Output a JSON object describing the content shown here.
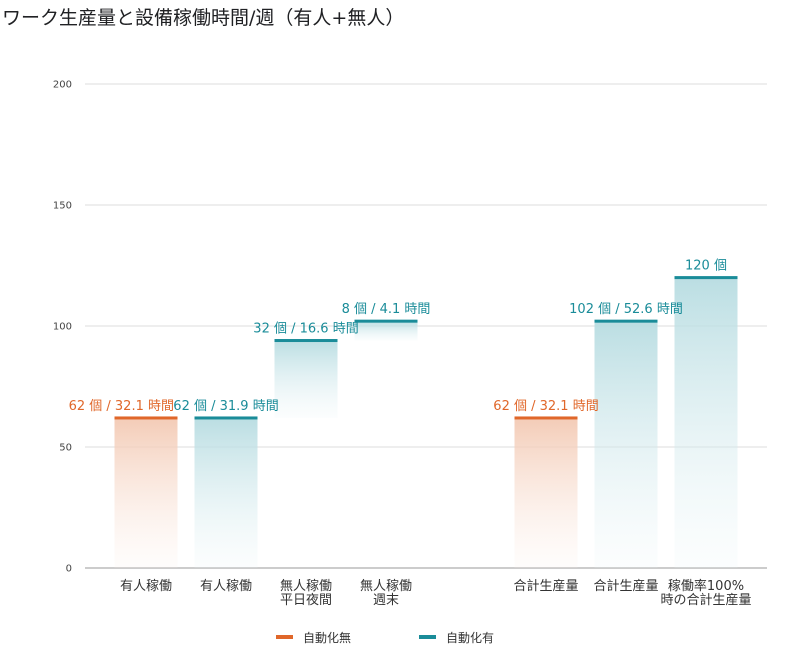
{
  "chart_data": {
    "type": "bar",
    "title": "ワーク生産量と設備稼働時間/週（有人+無人）",
    "xlabel": "",
    "ylabel": "",
    "ylim": [
      0,
      200
    ],
    "yticks": [
      "0",
      "50",
      "100",
      "150",
      "200"
    ],
    "grid": true,
    "legend_position": "bottom",
    "colors": {
      "自動化無": "#e0672a",
      "自動化有": "#1a8c99"
    },
    "legend": [
      {
        "name": "自動化無",
        "color": "#e0672a"
      },
      {
        "name": "自動化有",
        "color": "#1a8c99"
      }
    ],
    "bars": [
      {
        "category_lines": [
          "有人稼働"
        ],
        "series": "自動化無",
        "base": 0,
        "top": 62,
        "label": "62 個 / 32.1 時間"
      },
      {
        "category_lines": [
          "有人稼働"
        ],
        "series": "自動化有",
        "base": 0,
        "top": 62,
        "label": "62 個 / 31.9 時間"
      },
      {
        "category_lines": [
          "無人稼働",
          "平日夜間"
        ],
        "series": "自動化有",
        "base": 62,
        "top": 94,
        "label": "32 個 / 16.6 時間"
      },
      {
        "category_lines": [
          "無人稼働",
          "週末"
        ],
        "series": "自動化有",
        "base": 94,
        "top": 102,
        "label": "8 個 / 4.1 時間"
      },
      {
        "category_lines": [
          "合計生産量"
        ],
        "series": "自動化無",
        "base": 0,
        "top": 62,
        "label": "62 個 / 32.1 時間"
      },
      {
        "category_lines": [
          "合計生産量"
        ],
        "series": "自動化有",
        "base": 0,
        "top": 102,
        "label": "102 個 / 52.6 時間"
      },
      {
        "category_lines": [
          "稼働率100%",
          "時の合計生産量"
        ],
        "series": "自動化有",
        "base": 0,
        "top": 120,
        "label": "120 個"
      }
    ]
  }
}
